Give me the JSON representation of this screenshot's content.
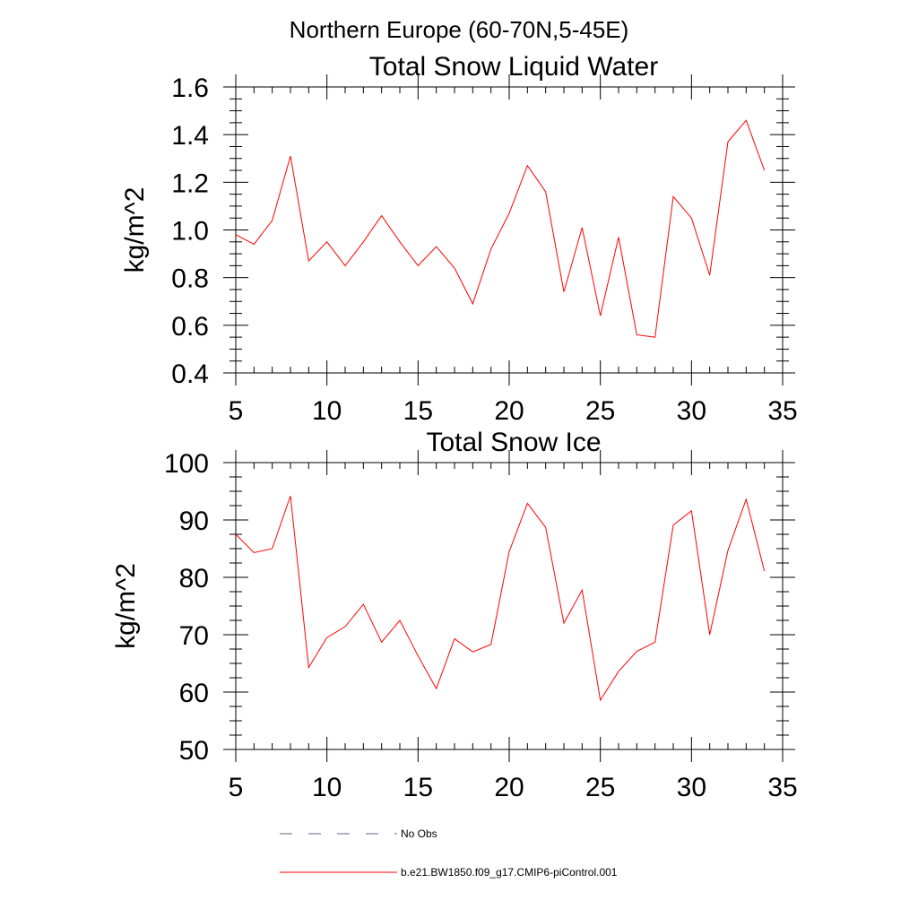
{
  "chart_data": [
    {
      "type": "line",
      "title": "Total Snow Liquid Water",
      "xlabel": "",
      "ylabel": "kg/m^2",
      "xlim": [
        5,
        35
      ],
      "ylim": [
        0.4,
        1.6
      ],
      "xticks": [
        5,
        10,
        15,
        20,
        25,
        30,
        35
      ],
      "yticks": [
        0.4,
        0.6,
        0.8,
        1.0,
        1.2,
        1.4,
        1.6
      ],
      "x_tick_labels": [
        "5",
        "10",
        "15",
        "20",
        "25",
        "30",
        "35"
      ],
      "y_tick_labels": [
        "0.4",
        "0.6",
        "0.8",
        "1.0",
        "1.2",
        "1.4",
        "1.6"
      ],
      "grid": false,
      "x": [
        5,
        6,
        7,
        8,
        9,
        10,
        11,
        12,
        13,
        14,
        15,
        16,
        17,
        18,
        19,
        20,
        21,
        22,
        23,
        24,
        25,
        26,
        27,
        28,
        29,
        30,
        31,
        32,
        33,
        34
      ],
      "series": [
        {
          "name": "b.e21.BW1850.f09_g17.CMIP6-piControl.001",
          "color": "#ff0000",
          "values": [
            0.98,
            0.94,
            1.04,
            1.31,
            0.87,
            0.95,
            0.85,
            0.95,
            1.06,
            0.95,
            0.85,
            0.93,
            0.84,
            0.69,
            0.92,
            1.07,
            1.27,
            1.16,
            0.74,
            1.01,
            0.64,
            0.97,
            0.56,
            0.55,
            1.14,
            1.05,
            0.81,
            1.37,
            1.46,
            1.25
          ]
        }
      ]
    },
    {
      "type": "line",
      "title": "Total Snow Ice",
      "xlabel": "",
      "ylabel": "kg/m^2",
      "xlim": [
        5,
        35
      ],
      "ylim": [
        50,
        100
      ],
      "xticks": [
        5,
        10,
        15,
        20,
        25,
        30,
        35
      ],
      "yticks": [
        50,
        60,
        70,
        80,
        90,
        100
      ],
      "x_tick_labels": [
        "5",
        "10",
        "15",
        "20",
        "25",
        "30",
        "35"
      ],
      "y_tick_labels": [
        "50",
        "60",
        "70",
        "80",
        "90",
        "100"
      ],
      "grid": false,
      "x": [
        5,
        6,
        7,
        8,
        9,
        10,
        11,
        12,
        13,
        14,
        15,
        16,
        17,
        18,
        19,
        20,
        21,
        22,
        23,
        24,
        25,
        26,
        27,
        28,
        29,
        30,
        31,
        32,
        33,
        34
      ],
      "series": [
        {
          "name": "b.e21.BW1850.f09_g17.CMIP6-piControl.001",
          "color": "#ff0000",
          "values": [
            87.5,
            84.3,
            85.0,
            94.2,
            64.3,
            69.5,
            71.4,
            75.3,
            68.7,
            72.5,
            66.3,
            60.6,
            69.3,
            67.0,
            68.3,
            84.5,
            92.9,
            88.7,
            72.0,
            77.8,
            58.6,
            63.6,
            67.1,
            68.7,
            89.1,
            91.6,
            70.0,
            84.7,
            93.6,
            81.1
          ]
        }
      ]
    }
  ],
  "suptitle": "Northern Europe (60-70N,5-45E)",
  "legend": {
    "placement": "bottom-left",
    "entries": [
      {
        "label": "No Obs",
        "style": "dashed",
        "color": "#5a6a8a"
      },
      {
        "label": "b.e21.BW1850.f09_g17.CMIP6-piControl.001",
        "style": "solid",
        "color": "#ff0000"
      }
    ]
  }
}
